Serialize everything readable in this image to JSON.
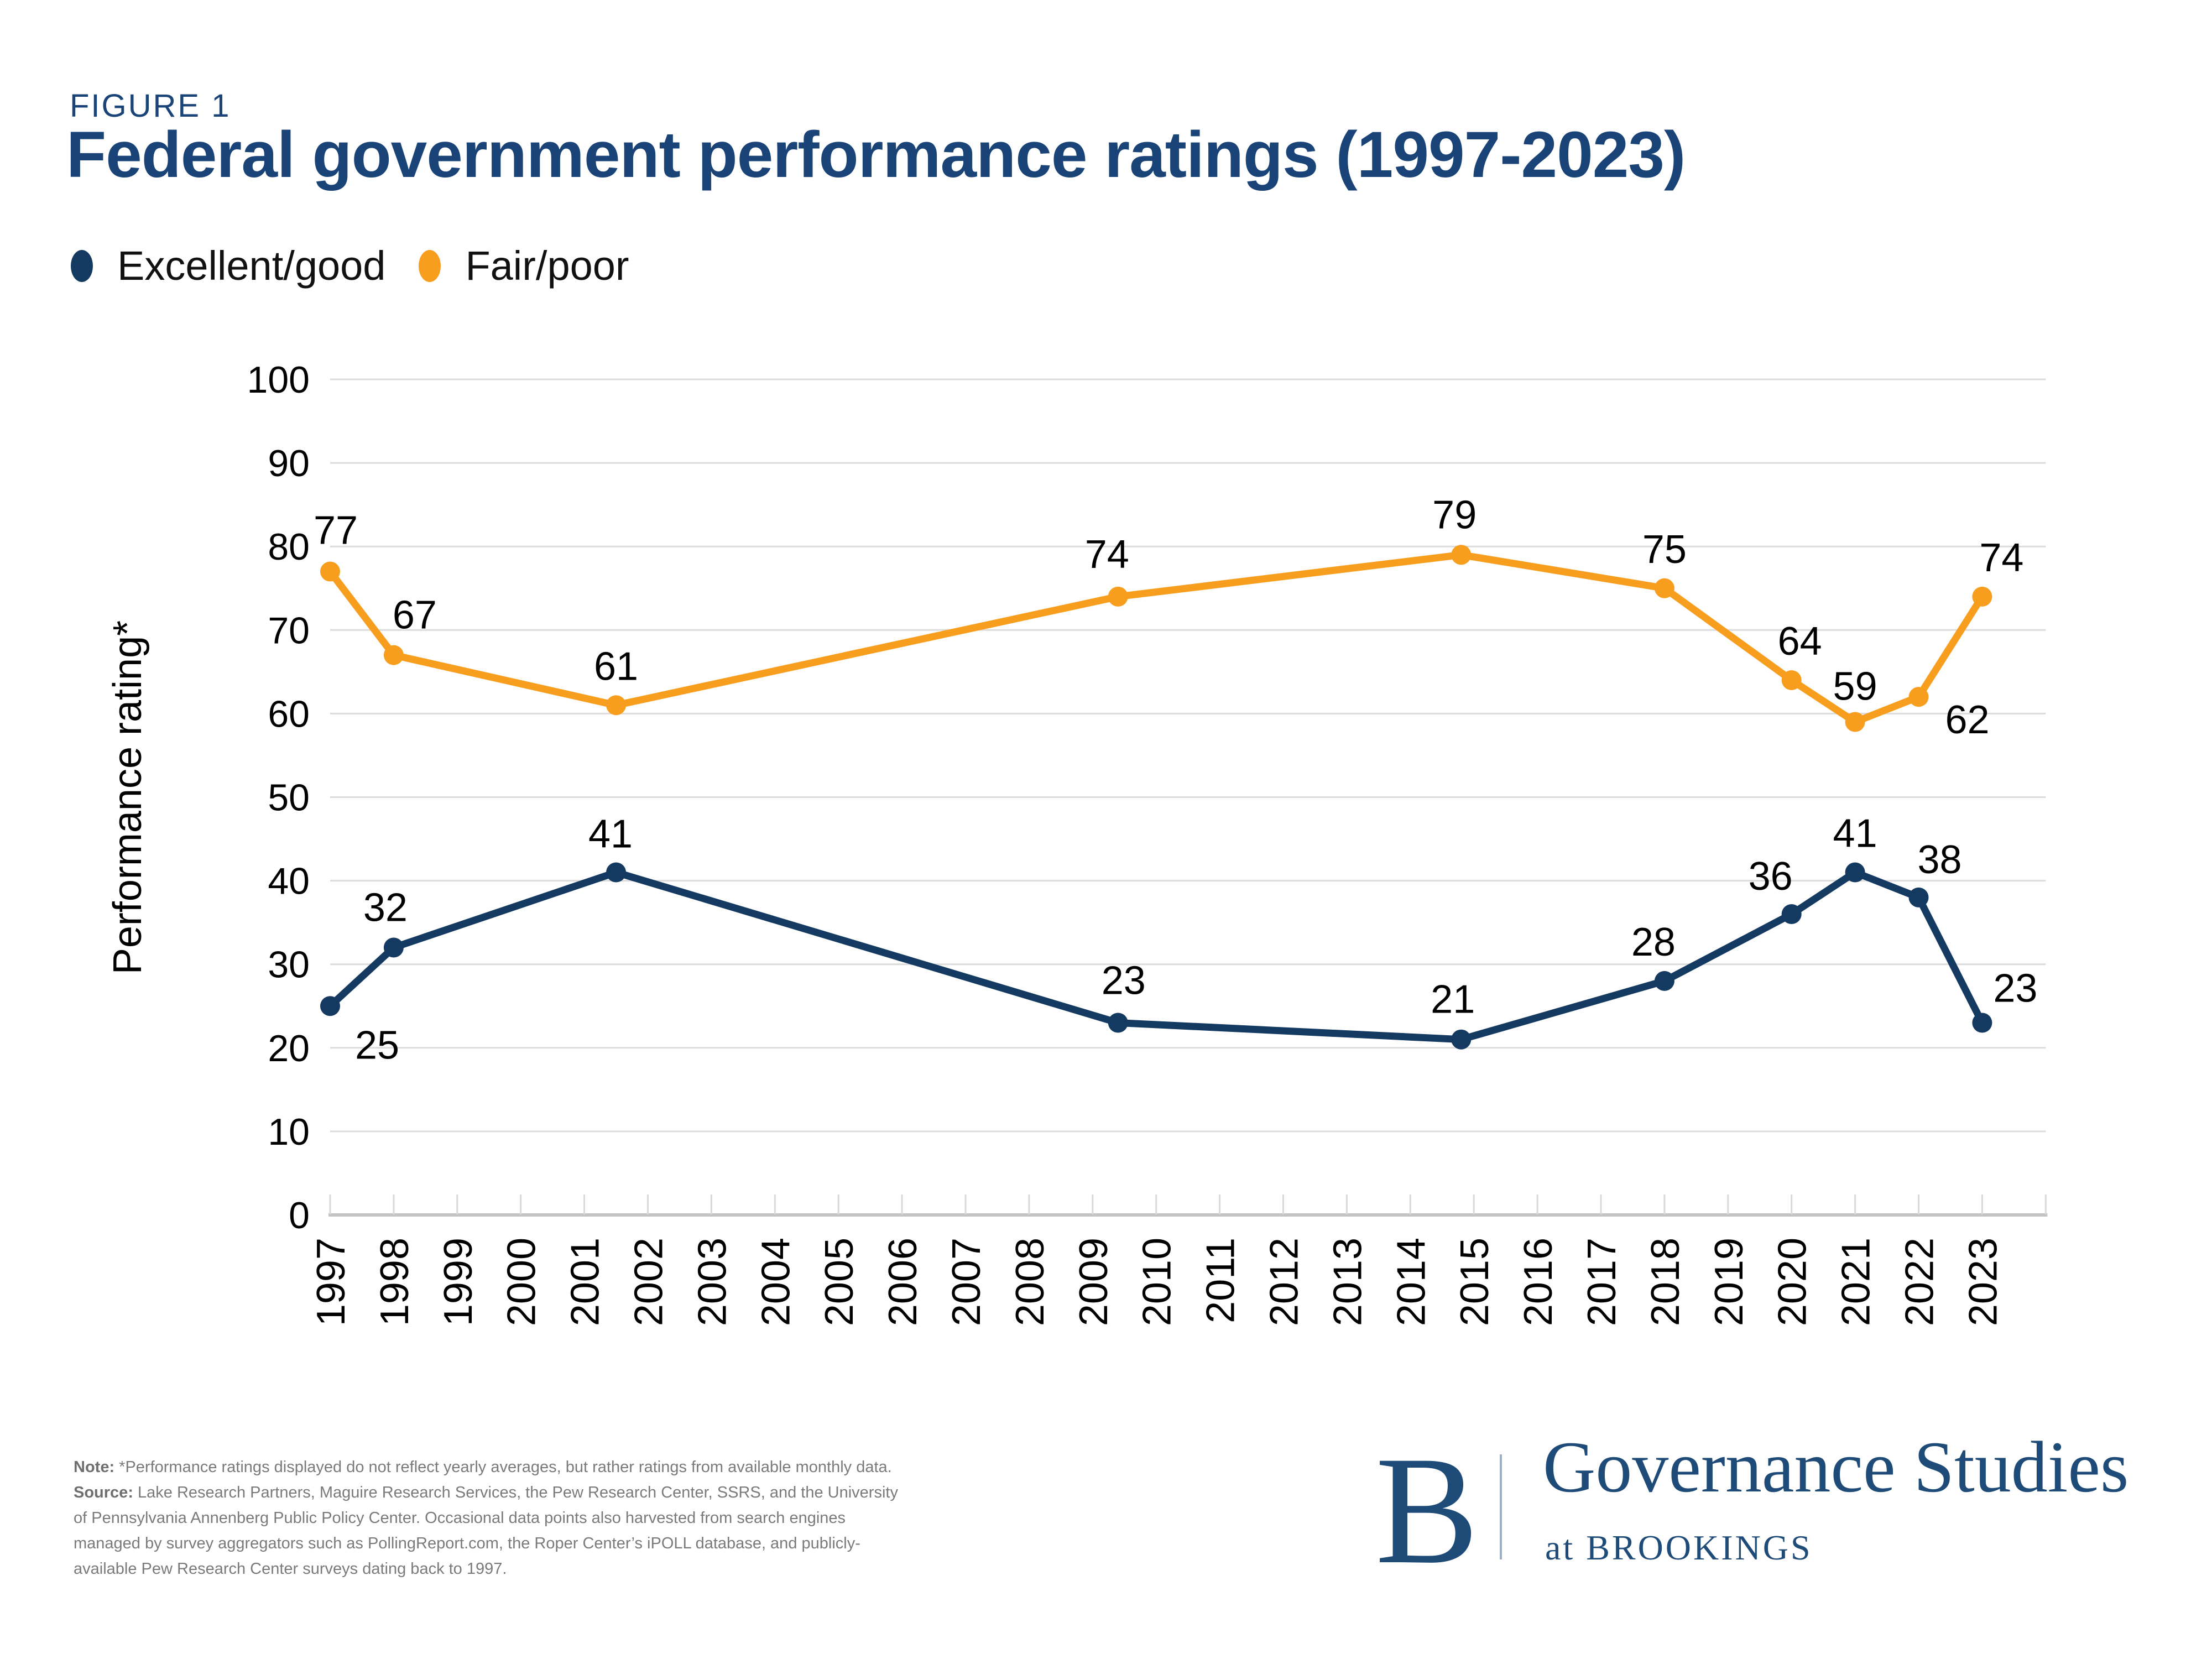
{
  "figure_label": "FIGURE 1",
  "title": "Federal government performance ratings (1997-2023)",
  "legend": [
    {
      "label": "Excellent/good",
      "color": "#143a62"
    },
    {
      "label": "Fair/poor",
      "color": "#f89e1f"
    }
  ],
  "chart_data": {
    "type": "line",
    "title": "Federal government performance ratings (1997-2023)",
    "xlabel": "",
    "ylabel": "Performance rating*",
    "ylim": [
      0,
      100
    ],
    "yticks": [
      0,
      10,
      20,
      30,
      40,
      50,
      60,
      70,
      80,
      90,
      100
    ],
    "years": [
      "1997",
      "1998",
      "1999",
      "2000",
      "2001",
      "2002",
      "2003",
      "2004",
      "2005",
      "2006",
      "2007",
      "2008",
      "2009",
      "2010",
      "2011",
      "2012",
      "2013",
      "2014",
      "2015",
      "2016",
      "2017",
      "2018",
      "2019",
      "2020",
      "2021",
      "2022",
      "2023"
    ],
    "grid": "horizontal",
    "legend_position": "top-left",
    "series": [
      {
        "name": "Fair/poor",
        "color": "#f89e1f",
        "points": [
          {
            "year": 1997,
            "value": 77,
            "dx": 10,
            "dy": -50
          },
          {
            "year": 1998,
            "value": 67,
            "dx": 38,
            "dy": -48
          },
          {
            "year": 2001.5,
            "value": 61,
            "dx": 0,
            "dy": -46
          },
          {
            "year": 2009.4,
            "value": 74,
            "dx": -20,
            "dy": -52
          },
          {
            "year": 2014.8,
            "value": 79,
            "dx": -12,
            "dy": -48
          },
          {
            "year": 2018,
            "value": 75,
            "dx": 0,
            "dy": -46
          },
          {
            "year": 2020,
            "value": 64,
            "dx": 15,
            "dy": -46
          },
          {
            "year": 2021,
            "value": 59,
            "dx": 0,
            "dy": -40
          },
          {
            "year": 2022,
            "value": 62,
            "dx": 88,
            "dy": 66
          },
          {
            "year": 2023,
            "value": 74,
            "dx": 35,
            "dy": -46
          }
        ]
      },
      {
        "name": "Excellent/good",
        "color": "#143a62",
        "points": [
          {
            "year": 1997,
            "value": 25,
            "dx": 85,
            "dy": 95
          },
          {
            "year": 1998,
            "value": 32,
            "dx": -15,
            "dy": -48
          },
          {
            "year": 2001.5,
            "value": 41,
            "dx": -10,
            "dy": -45
          },
          {
            "year": 2009.4,
            "value": 23,
            "dx": 10,
            "dy": -52
          },
          {
            "year": 2014.8,
            "value": 21,
            "dx": -15,
            "dy": -48
          },
          {
            "year": 2018,
            "value": 28,
            "dx": -20,
            "dy": -46
          },
          {
            "year": 2020,
            "value": 36,
            "dx": -38,
            "dy": -44
          },
          {
            "year": 2021,
            "value": 41,
            "dx": 0,
            "dy": -46
          },
          {
            "year": 2022,
            "value": 38,
            "dx": 38,
            "dy": -44
          },
          {
            "year": 2023,
            "value": 23,
            "dx": 60,
            "dy": -38
          }
        ]
      }
    ]
  },
  "note": {
    "note_label": "Note:",
    "note_text": " *Performance ratings displayed do not reflect yearly averages, but rather ratings from available monthly data.",
    "source_label": "Source:",
    "source_text": " Lake Research Partners, Maguire Research Services, the Pew Research Center, SSRS, and the University of Pennsylvania Annenberg Public Policy Center. Occasional data points also harvested from search engines managed by survey aggregators such as PollingReport.com, the Roper Center’s iPOLL database, and publicly-available Pew Research Center surveys dating back to 1997."
  },
  "logo": {
    "monogram": "B",
    "name": "Governance Studies",
    "sub": "at BROOKINGS"
  },
  "colors": {
    "title_navy": "#1a4378",
    "gridline": "#dcdcdc",
    "axis_line": "#c4c4c4",
    "tick": "#d9d9d9",
    "label_black": "#000000",
    "note_gray": "#7a7a7a",
    "logo_navy": "#1e4b77"
  }
}
